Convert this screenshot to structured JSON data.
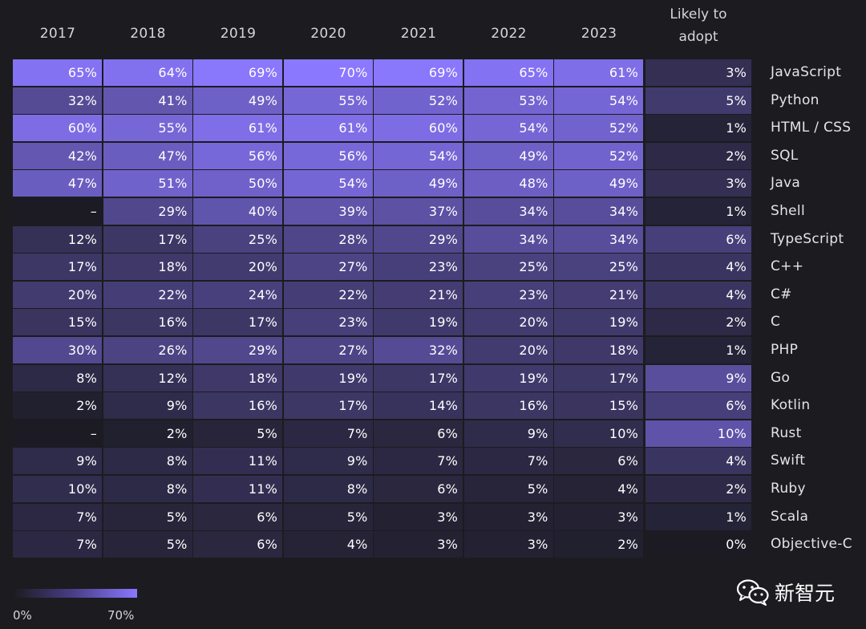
{
  "chart_data": {
    "type": "heatmap",
    "columns": [
      "2017",
      "2018",
      "2019",
      "2020",
      "2021",
      "2022",
      "2023"
    ],
    "adopt_header": "Likely to\nadopt",
    "rows": [
      {
        "label": "JavaScript",
        "values": [
          "65%",
          "64%",
          "69%",
          "70%",
          "69%",
          "65%",
          "61%"
        ],
        "adopt": "3%"
      },
      {
        "label": "Python",
        "values": [
          "32%",
          "41%",
          "49%",
          "55%",
          "52%",
          "53%",
          "54%"
        ],
        "adopt": "5%"
      },
      {
        "label": "HTML / CSS",
        "values": [
          "60%",
          "55%",
          "61%",
          "61%",
          "60%",
          "54%",
          "52%"
        ],
        "adopt": "1%"
      },
      {
        "label": "SQL",
        "values": [
          "42%",
          "47%",
          "56%",
          "56%",
          "54%",
          "49%",
          "52%"
        ],
        "adopt": "2%"
      },
      {
        "label": "Java",
        "values": [
          "47%",
          "51%",
          "50%",
          "54%",
          "49%",
          "48%",
          "49%"
        ],
        "adopt": "3%"
      },
      {
        "label": "Shell",
        "values": [
          "–",
          "29%",
          "40%",
          "39%",
          "37%",
          "34%",
          "34%"
        ],
        "adopt": "1%"
      },
      {
        "label": "TypeScript",
        "values": [
          "12%",
          "17%",
          "25%",
          "28%",
          "29%",
          "34%",
          "34%"
        ],
        "adopt": "6%"
      },
      {
        "label": "C++",
        "values": [
          "17%",
          "18%",
          "20%",
          "27%",
          "23%",
          "25%",
          "25%"
        ],
        "adopt": "4%"
      },
      {
        "label": "C#",
        "values": [
          "20%",
          "22%",
          "24%",
          "22%",
          "21%",
          "23%",
          "21%"
        ],
        "adopt": "4%"
      },
      {
        "label": "C",
        "values": [
          "15%",
          "16%",
          "17%",
          "23%",
          "19%",
          "20%",
          "19%"
        ],
        "adopt": "2%"
      },
      {
        "label": "PHP",
        "values": [
          "30%",
          "26%",
          "29%",
          "27%",
          "32%",
          "20%",
          "18%"
        ],
        "adopt": "1%"
      },
      {
        "label": "Go",
        "values": [
          "8%",
          "12%",
          "18%",
          "19%",
          "17%",
          "19%",
          "17%"
        ],
        "adopt": "9%"
      },
      {
        "label": "Kotlin",
        "values": [
          "2%",
          "9%",
          "16%",
          "17%",
          "14%",
          "16%",
          "15%"
        ],
        "adopt": "6%"
      },
      {
        "label": "Rust",
        "values": [
          "–",
          "2%",
          "5%",
          "7%",
          "6%",
          "9%",
          "10%"
        ],
        "adopt": "10%"
      },
      {
        "label": "Swift",
        "values": [
          "9%",
          "8%",
          "11%",
          "9%",
          "7%",
          "7%",
          "6%"
        ],
        "adopt": "4%"
      },
      {
        "label": "Ruby",
        "values": [
          "10%",
          "8%",
          "11%",
          "8%",
          "6%",
          "5%",
          "4%"
        ],
        "adopt": "2%"
      },
      {
        "label": "Scala",
        "values": [
          "7%",
          "5%",
          "6%",
          "5%",
          "3%",
          "3%",
          "3%"
        ],
        "adopt": "1%"
      },
      {
        "label": "Objective-C",
        "values": [
          "7%",
          "5%",
          "6%",
          "4%",
          "3%",
          "3%",
          "2%"
        ],
        "adopt": "0%"
      }
    ],
    "scale": {
      "min_label": "0%",
      "max_label": "70%",
      "min": 0,
      "max": 70,
      "color_low": "#1c1b24",
      "color_high": "#8a78ff"
    },
    "adopt_scale_max": 10
  },
  "watermark": {
    "text": "新智元",
    "icon": "wechat-icon"
  },
  "colors": {
    "background": "#1c1b1f",
    "accent": "#8a78ff"
  }
}
